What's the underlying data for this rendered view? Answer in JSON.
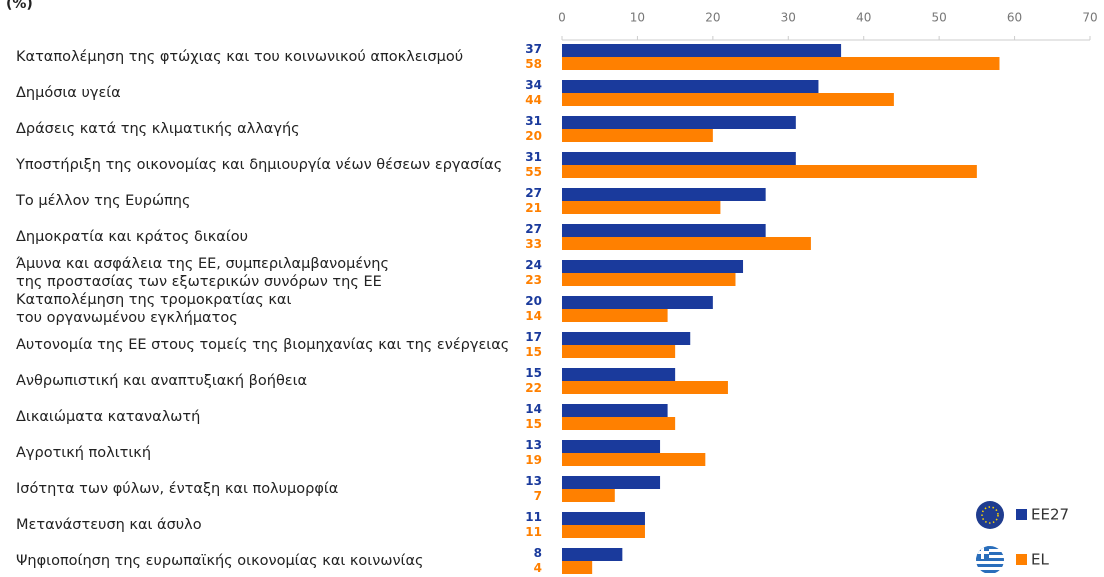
{
  "chart_data": {
    "type": "hbar",
    "title": "(%)",
    "categories": [
      "Καταπολέμηση της φτώχιας και του κοινωνικού αποκλεισμού",
      "Δημόσια υγεία",
      "Δράσεις κατά της κλιματικής αλλαγής",
      "Υποστήριξη της οικονομίας και δημιουργία νέων θέσεων εργασίας",
      "Το μέλλον της Ευρώπης",
      "Δημοκρατία και κράτος δικαίου",
      "Άμυνα και ασφάλεια της ΕΕ, συμπεριλαμβανομένης\nτης προστασίας των εξωτερικών συνόρων της ΕΕ",
      "Καταπολέμηση της τρομοκρατίας και\nτου οργανωμένου εγκλήματος",
      "Αυτονομία της ΕΕ στους τομείς της βιομηχανίας και της ενέργειας",
      "Ανθρωπιστική και αναπτυξιακή βοήθεια",
      "Δικαιώματα καταναλωτή",
      "Αγροτική πολιτική",
      "Ισότητα των φύλων, ένταξη και πολυμορφία",
      "Μετανάστευση και άσυλο",
      "Ψηφιοποίηση της ευρωπαϊκής οικονομίας και κοινωνίας"
    ],
    "series": [
      {
        "name": "EE27",
        "color": "#1a3a9c",
        "values": [
          37,
          34,
          31,
          31,
          27,
          27,
          24,
          20,
          17,
          15,
          14,
          13,
          13,
          11,
          8
        ]
      },
      {
        "name": "EL",
        "color": "#ff8000",
        "values": [
          58,
          44,
          20,
          55,
          21,
          33,
          23,
          14,
          15,
          22,
          15,
          19,
          7,
          11,
          4
        ]
      }
    ],
    "xlim": [
      0,
      70
    ],
    "xticks": [
      0,
      10,
      20,
      30,
      40,
      50,
      60,
      70
    ],
    "legend": "bottom-right"
  }
}
